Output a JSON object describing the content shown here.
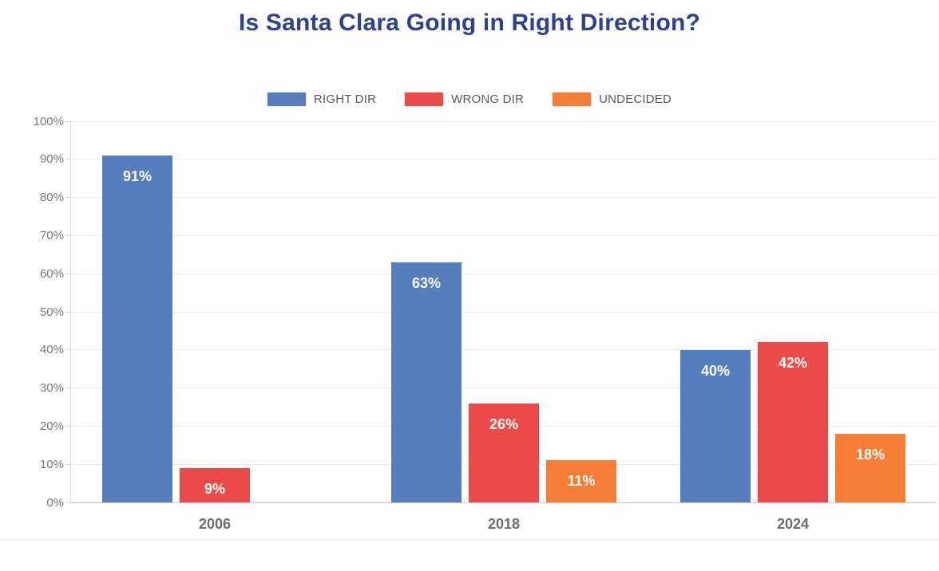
{
  "title": "Is Santa Clara Going in Right Direction?",
  "colors": {
    "title": "#2c4192",
    "right_dir": "#557ebf",
    "wrong_dir": "#ec4a48",
    "undecided": "#f57e37",
    "gridline": "#ebebf2",
    "axis_v": "#d9d9e2",
    "axis_baseline": "#c8c8d2",
    "tick_text": "#7a7a7a",
    "legend_text": "#5a5a5a",
    "category_label": "#6d6d6d",
    "bar_label": "#ffffff",
    "bottom_separator": "#f3eef2"
  },
  "legend": [
    {
      "label": "RIGHT DIR",
      "color": "#557ebf"
    },
    {
      "label": "WRONG DIR",
      "color": "#ec4a48"
    },
    {
      "label": "UNDECIDED",
      "color": "#f57e37"
    }
  ],
  "chart_data": {
    "type": "bar",
    "title": "Is Santa Clara Going in Right Direction?",
    "categories": [
      "2006",
      "2018",
      "2024"
    ],
    "series": [
      {
        "name": "RIGHT DIR",
        "color": "#557ebf",
        "values": [
          91,
          63,
          40
        ]
      },
      {
        "name": "WRONG DIR",
        "color": "#ec4a48",
        "values": [
          9,
          26,
          42
        ]
      },
      {
        "name": "UNDECIDED",
        "color": "#f57e37",
        "values": [
          null,
          11,
          18
        ]
      }
    ],
    "value_label_format": "{v}%",
    "y_ticks": [
      "100%",
      "90%",
      "80%",
      "70%",
      "60%",
      "50%",
      "40%",
      "30%",
      "20%",
      "10%",
      "0%"
    ],
    "ylim": [
      0,
      100
    ],
    "xlabel": "",
    "ylabel": "",
    "grid": true,
    "legend_position": "top"
  }
}
